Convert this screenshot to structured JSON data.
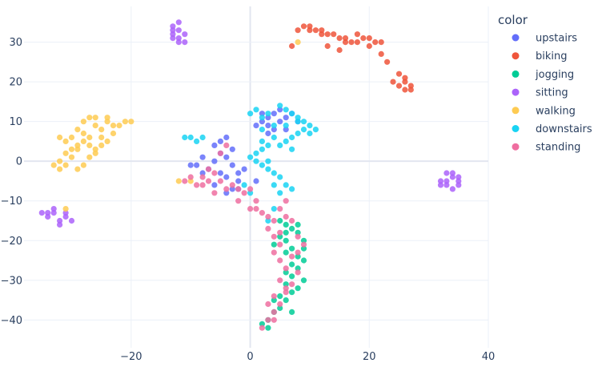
{
  "chart_data": {
    "type": "scatter",
    "title": "",
    "xlabel": "",
    "ylabel": "",
    "xlim": [
      -38,
      40
    ],
    "ylim": [
      -47,
      39
    ],
    "x_ticks": [
      -20,
      0,
      20,
      40
    ],
    "y_ticks": [
      -40,
      -30,
      -20,
      -10,
      0,
      10,
      20,
      30
    ],
    "grid": true,
    "legend_title": "color",
    "legend_position": "top-right",
    "series": [
      {
        "name": "upstairs",
        "color": "#636efa",
        "points": [
          [
            -5,
            5
          ],
          [
            -4,
            6
          ],
          [
            -6,
            4
          ],
          [
            -3,
            3
          ],
          [
            -5,
            2
          ],
          [
            -6,
            0
          ],
          [
            -4,
            1
          ],
          [
            -3,
            -1
          ],
          [
            -7,
            -2
          ],
          [
            -5,
            -3
          ],
          [
            -4,
            -4
          ],
          [
            -2,
            -5
          ],
          [
            -3,
            -7
          ],
          [
            -8,
            -3
          ],
          [
            -9,
            -1
          ],
          [
            -8,
            1
          ],
          [
            -6,
            -6
          ],
          [
            -4,
            -8
          ],
          [
            -2,
            -3
          ],
          [
            -1,
            -2
          ],
          [
            1,
            9
          ],
          [
            2,
            10
          ],
          [
            3,
            11
          ],
          [
            4,
            12
          ],
          [
            5,
            10
          ],
          [
            6,
            11
          ],
          [
            7,
            12
          ],
          [
            5,
            13
          ],
          [
            3,
            9
          ],
          [
            2,
            12
          ],
          [
            8,
            10
          ],
          [
            4,
            8
          ],
          [
            -2,
            -7
          ],
          [
            1,
            -5
          ],
          [
            -10,
            -1
          ],
          [
            3,
            7
          ],
          [
            6,
            8
          ]
        ]
      },
      {
        "name": "biking",
        "color": "#ef553b",
        "points": [
          [
            8,
            33
          ],
          [
            9,
            34
          ],
          [
            10,
            34
          ],
          [
            11,
            33
          ],
          [
            12,
            33
          ],
          [
            13,
            32
          ],
          [
            14,
            32
          ],
          [
            15,
            31
          ],
          [
            16,
            31
          ],
          [
            17,
            30
          ],
          [
            18,
            32
          ],
          [
            19,
            31
          ],
          [
            20,
            31
          ],
          [
            21,
            30
          ],
          [
            22,
            30
          ],
          [
            13,
            29
          ],
          [
            15,
            28
          ],
          [
            16,
            30
          ],
          [
            20,
            29
          ],
          [
            22,
            27
          ],
          [
            23,
            25
          ],
          [
            25,
            22
          ],
          [
            26,
            21
          ],
          [
            26,
            20
          ],
          [
            27,
            19
          ],
          [
            27,
            18
          ],
          [
            26,
            18
          ],
          [
            25,
            19
          ],
          [
            24,
            20
          ],
          [
            7,
            29
          ],
          [
            10,
            33
          ],
          [
            18,
            30
          ],
          [
            12,
            32
          ]
        ]
      },
      {
        "name": "jogging",
        "color": "#00cc96",
        "points": [
          [
            5,
            -15
          ],
          [
            6,
            -16
          ],
          [
            7,
            -17
          ],
          [
            8,
            -18
          ],
          [
            6,
            -20
          ],
          [
            7,
            -22
          ],
          [
            8,
            -24
          ],
          [
            9,
            -25
          ],
          [
            8,
            -27
          ],
          [
            7,
            -29
          ],
          [
            6,
            -31
          ],
          [
            7,
            -33
          ],
          [
            6,
            -35
          ],
          [
            5,
            -37
          ],
          [
            4,
            -38
          ],
          [
            3,
            -40
          ],
          [
            2,
            -41
          ],
          [
            8,
            -32
          ],
          [
            9,
            -30
          ],
          [
            7,
            -26
          ],
          [
            6,
            -23
          ],
          [
            5,
            -19
          ],
          [
            4,
            -21
          ],
          [
            9,
            -20
          ],
          [
            8,
            -16
          ],
          [
            6,
            -28
          ],
          [
            5,
            -34
          ],
          [
            7,
            -38
          ],
          [
            4,
            -35
          ],
          [
            3,
            -42
          ],
          [
            9,
            -22
          ],
          [
            6,
            -18
          ]
        ]
      },
      {
        "name": "sitting",
        "color": "#ab63fa",
        "points": [
          [
            -13,
            32
          ],
          [
            -12,
            33
          ],
          [
            -13,
            34
          ],
          [
            -12,
            31
          ],
          [
            -11,
            30
          ],
          [
            -12,
            30
          ],
          [
            -13,
            33
          ],
          [
            -11,
            32
          ],
          [
            -12,
            35
          ],
          [
            -13,
            31
          ],
          [
            -35,
            -13
          ],
          [
            -34,
            -14
          ],
          [
            -33,
            -13
          ],
          [
            -32,
            -15
          ],
          [
            -31,
            -14
          ],
          [
            -30,
            -15
          ],
          [
            -33,
            -12
          ],
          [
            -34,
            -13
          ],
          [
            -32,
            -16
          ],
          [
            -31,
            -13
          ],
          [
            33,
            -5
          ],
          [
            34,
            -4
          ],
          [
            35,
            -6
          ],
          [
            33,
            -3
          ],
          [
            32,
            -5
          ],
          [
            34,
            -7
          ],
          [
            35,
            -5
          ],
          [
            33,
            -6
          ],
          [
            34,
            -3
          ],
          [
            32,
            -6
          ],
          [
            35,
            -4
          ]
        ]
      },
      {
        "name": "walking",
        "color": "#fecb52",
        "points": [
          [
            -29,
            8
          ],
          [
            -28,
            10
          ],
          [
            -27,
            11
          ],
          [
            -26,
            9
          ],
          [
            -25,
            8
          ],
          [
            -24,
            10
          ],
          [
            -23,
            9
          ],
          [
            -22,
            9
          ],
          [
            -23,
            7
          ],
          [
            -25,
            6
          ],
          [
            -27,
            6
          ],
          [
            -28,
            5
          ],
          [
            -29,
            4
          ],
          [
            -30,
            3
          ],
          [
            -31,
            2
          ],
          [
            -30,
            1
          ],
          [
            -31,
            -1
          ],
          [
            -32,
            -2
          ],
          [
            -33,
            -1
          ],
          [
            -32,
            0
          ],
          [
            -30,
            6
          ],
          [
            -29,
            3
          ],
          [
            -27,
            4
          ],
          [
            -26,
            3
          ],
          [
            -27,
            1
          ],
          [
            -28,
            -1
          ],
          [
            -29,
            -2
          ],
          [
            -25,
            4
          ],
          [
            -24,
            5
          ],
          [
            -31,
            5
          ],
          [
            -32,
            6
          ],
          [
            -26,
            11
          ],
          [
            -24,
            11
          ],
          [
            -20,
            10
          ],
          [
            -21,
            10
          ],
          [
            -12,
            -5
          ],
          [
            -10,
            -5
          ],
          [
            -31,
            -12
          ],
          [
            8,
            30
          ],
          [
            -26,
            2
          ],
          [
            -28,
            7
          ]
        ]
      },
      {
        "name": "downstairs",
        "color": "#19d3f3",
        "points": [
          [
            0,
            12
          ],
          [
            1,
            13
          ],
          [
            2,
            11
          ],
          [
            3,
            12
          ],
          [
            5,
            14
          ],
          [
            6,
            13
          ],
          [
            7,
            12
          ],
          [
            8,
            11
          ],
          [
            9,
            10
          ],
          [
            10,
            9
          ],
          [
            11,
            8
          ],
          [
            10,
            7
          ],
          [
            8,
            7
          ],
          [
            7,
            6
          ],
          [
            6,
            5
          ],
          [
            5,
            4
          ],
          [
            4,
            6
          ],
          [
            3,
            4
          ],
          [
            2,
            3
          ],
          [
            1,
            2
          ],
          [
            0,
            1
          ],
          [
            1,
            0
          ],
          [
            2,
            -1
          ],
          [
            3,
            -2
          ],
          [
            4,
            -3
          ],
          [
            5,
            -4
          ],
          [
            6,
            -6
          ],
          [
            7,
            -7
          ],
          [
            5,
            -8
          ],
          [
            4,
            -6
          ],
          [
            3,
            0
          ],
          [
            2,
            5
          ],
          [
            4,
            9
          ],
          [
            6,
            9
          ],
          [
            8,
            10
          ],
          [
            9,
            8
          ],
          [
            -10,
            6
          ],
          [
            -11,
            6
          ],
          [
            -9,
            5
          ],
          [
            -8,
            6
          ],
          [
            0,
            -8
          ],
          [
            -1,
            -6
          ],
          [
            4,
            -12
          ],
          [
            3,
            -15
          ],
          [
            2,
            8
          ],
          [
            7,
            3
          ]
        ]
      },
      {
        "name": "standing",
        "color": "#ef6ea0",
        "points": [
          [
            -6,
            -3
          ],
          [
            -5,
            -5
          ],
          [
            -4,
            -7
          ],
          [
            -3,
            -6
          ],
          [
            -2,
            -7
          ],
          [
            -1,
            -8
          ],
          [
            0,
            -7
          ],
          [
            -7,
            -5
          ],
          [
            -8,
            -4
          ],
          [
            -9,
            -6
          ],
          [
            -10,
            -4
          ],
          [
            -11,
            -5
          ],
          [
            -8,
            -6
          ],
          [
            -6,
            -8
          ],
          [
            0,
            -12
          ],
          [
            1,
            -12
          ],
          [
            2,
            -13
          ],
          [
            3,
            -14
          ],
          [
            4,
            -15
          ],
          [
            3,
            -17
          ],
          [
            4,
            -19
          ],
          [
            5,
            -21
          ],
          [
            4,
            -23
          ],
          [
            5,
            -25
          ],
          [
            6,
            -27
          ],
          [
            5,
            -30
          ],
          [
            6,
            -32
          ],
          [
            4,
            -34
          ],
          [
            5,
            -36
          ],
          [
            4,
            -38
          ],
          [
            3,
            -40
          ],
          [
            2,
            -42
          ],
          [
            -5,
            2
          ],
          [
            -4,
            4
          ],
          [
            6,
            -10
          ],
          [
            5,
            -12
          ],
          [
            6,
            -14
          ],
          [
            7,
            -15
          ],
          [
            8,
            -19
          ],
          [
            9,
            -21
          ],
          [
            8,
            -23
          ],
          [
            7,
            -24
          ],
          [
            8,
            -28
          ],
          [
            7,
            -31
          ],
          [
            6,
            -33
          ],
          [
            3,
            -36
          ],
          [
            4,
            -40
          ],
          [
            -2,
            -10
          ],
          [
            1,
            -10
          ],
          [
            5,
            -18
          ],
          [
            -7,
            -2
          ]
        ]
      }
    ]
  }
}
